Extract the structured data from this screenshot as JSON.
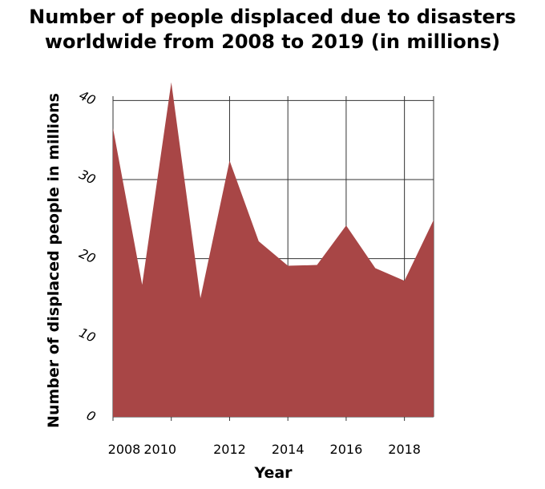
{
  "chart_data": {
    "type": "area",
    "title_lines": [
      "Number of people displaced due to disasters",
      "worldwide from 2008 to 2019 (in millions)"
    ],
    "xlabel": "Year",
    "ylabel": "Number of displaced people in millions",
    "x": [
      2008,
      2009,
      2010,
      2011,
      2012,
      2013,
      2014,
      2015,
      2016,
      2017,
      2018,
      2019
    ],
    "values": [
      36.5,
      16.7,
      42.3,
      15.0,
      32.4,
      22.2,
      19.1,
      19.2,
      24.2,
      18.8,
      17.2,
      24.9
    ],
    "xticks": [
      2008,
      2010,
      2012,
      2014,
      2016,
      2018
    ],
    "xtick_labels": [
      "2008",
      "2010",
      "2012",
      "2014",
      "2016",
      "2018"
    ],
    "yticks": [
      0,
      10,
      20,
      30,
      40
    ],
    "ytick_labels": [
      "0",
      "10",
      "20",
      "30",
      "40"
    ],
    "xlim": [
      2008,
      2019
    ],
    "ylim": [
      0,
      45
    ],
    "grid": true,
    "fill_color": "#a84646"
  }
}
